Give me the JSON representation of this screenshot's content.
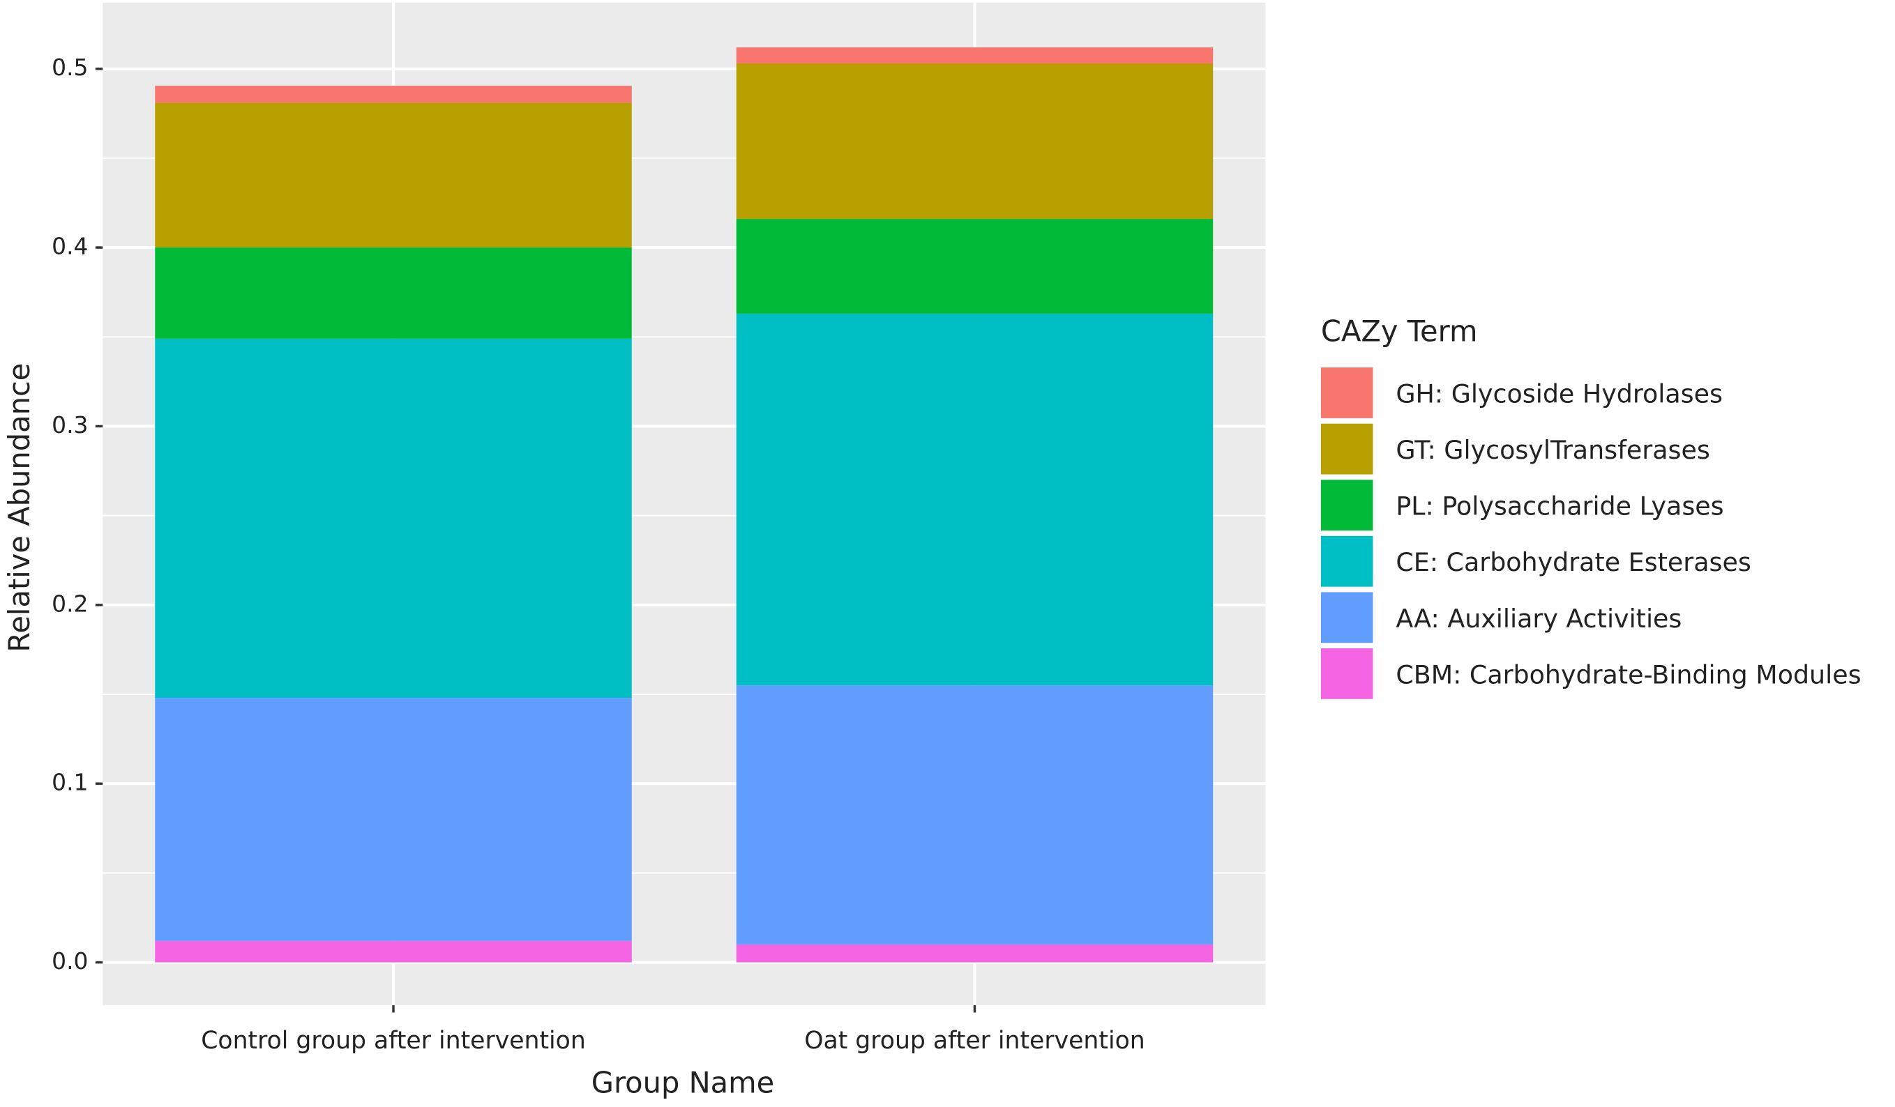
{
  "chart_data": {
    "type": "stacked_bar",
    "x_label": "Group Name",
    "y_label": "Relative Abundance",
    "legend_title": "CAZy Term",
    "legend_position": "right",
    "categories": [
      "Control group after intervention",
      "Oat group after intervention"
    ],
    "series": [
      {
        "name": "GH: Glycoside Hydrolases",
        "color": "#f8766d",
        "values": [
          0.0095,
          0.009
        ]
      },
      {
        "name": "GT: GlycosylTransferases",
        "color": "#b79f00",
        "values": [
          0.081,
          0.087
        ]
      },
      {
        "name": "PL: Polysaccharide Lyases",
        "color": "#00ba38",
        "values": [
          0.051,
          0.053
        ]
      },
      {
        "name": "CE: Carbohydrate Esterases",
        "color": "#00bfc4",
        "values": [
          0.201,
          0.208
        ]
      },
      {
        "name": "AA: Auxiliary Activities",
        "color": "#619cff",
        "values": [
          0.136,
          0.145
        ]
      },
      {
        "name": "CBM: Carbohydrate-Binding Modules",
        "color": "#f564e3",
        "values": [
          0.012,
          0.01
        ]
      }
    ],
    "ylim": [
      -0.024,
      0.537
    ],
    "yticks": [
      {
        "value": 0,
        "label": "0.0"
      },
      {
        "value": 0.1,
        "label": "0.1"
      },
      {
        "value": 0.2,
        "label": "0.2"
      },
      {
        "value": 0.3,
        "label": "0.3"
      },
      {
        "value": 0.4,
        "label": "0.4"
      },
      {
        "value": 0.5,
        "label": "0.5"
      }
    ],
    "grid": true
  }
}
